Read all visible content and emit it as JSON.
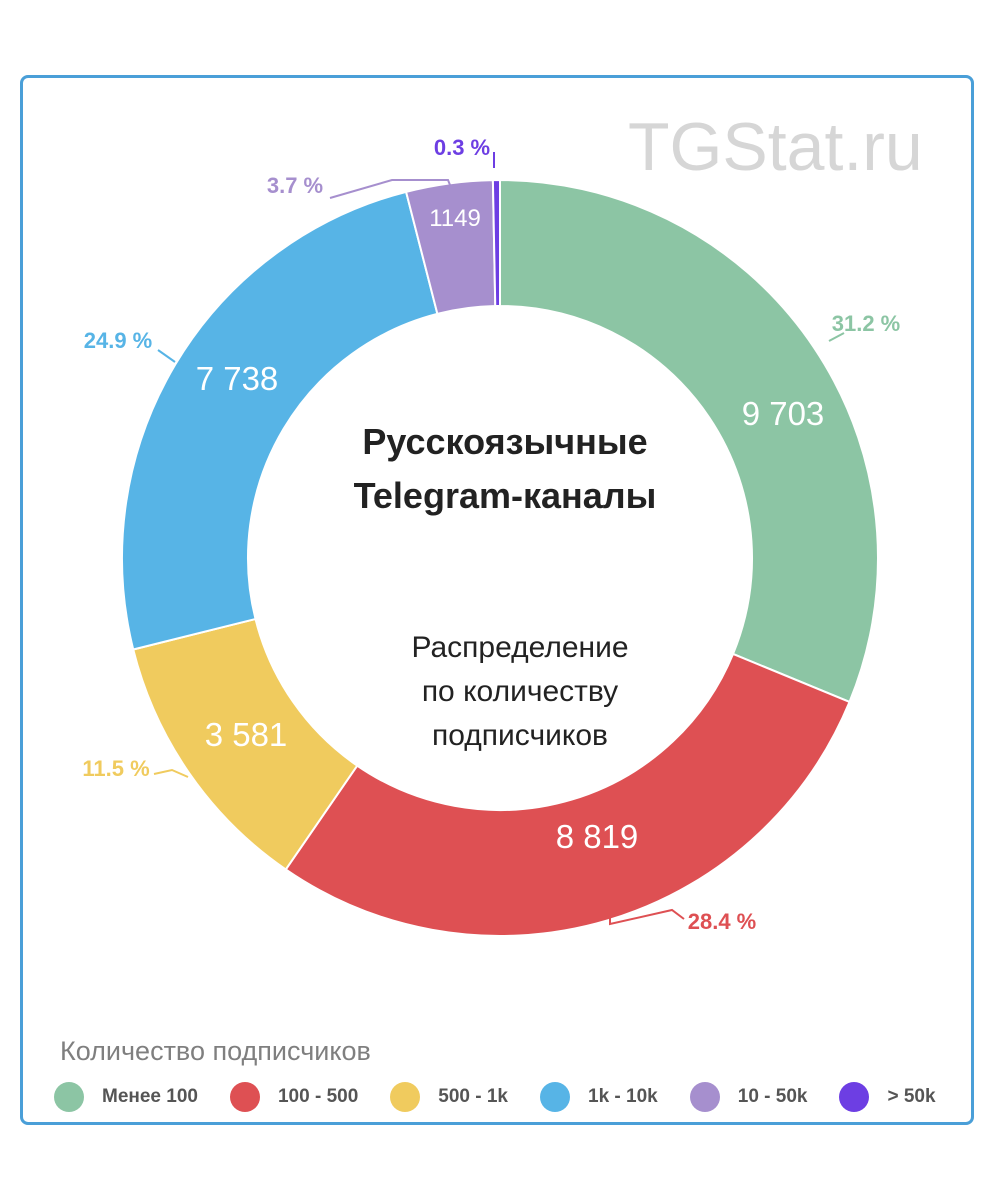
{
  "watermark": "TGStat.ru",
  "center": {
    "title_line1": "Русскоязычные",
    "title_line2": "Telegram-каналы",
    "subtitle_line1": "Распределение",
    "subtitle_line2": "по количеству",
    "subtitle_line3": "подписчиков"
  },
  "legend_title": "Количество подписчиков",
  "chart_data": {
    "type": "pie",
    "title": "Русскоязычные Telegram-каналы",
    "subtitle": "Распределение по количеству подписчиков",
    "legend_title": "Количество подписчиков",
    "legend_position": "bottom",
    "donut": true,
    "slices": [
      {
        "label": "Менее 100",
        "value": 9703,
        "value_label": "9 703",
        "percent_label": "31.2 %",
        "color": "#8cc5a4"
      },
      {
        "label": "100 - 500",
        "value": 8819,
        "value_label": "8 819",
        "percent_label": "28.4 %",
        "color": "#de5053"
      },
      {
        "label": "500 - 1k",
        "value": 3581,
        "value_label": "3 581",
        "percent_label": "11.5 %",
        "color": "#f0cb5e"
      },
      {
        "label": "1k - 10k",
        "value": 7738,
        "value_label": "7 738",
        "percent_label": "24.9 %",
        "color": "#57b4e6"
      },
      {
        "label": "10 - 50k",
        "value": 1149,
        "value_label": "1149",
        "percent_label": "3.7 %",
        "color": "#a68fce"
      },
      {
        "label": "> 50k",
        "value": 93,
        "value_label": "",
        "percent_label": "0.3 %",
        "color": "#6d3ee3"
      }
    ]
  }
}
